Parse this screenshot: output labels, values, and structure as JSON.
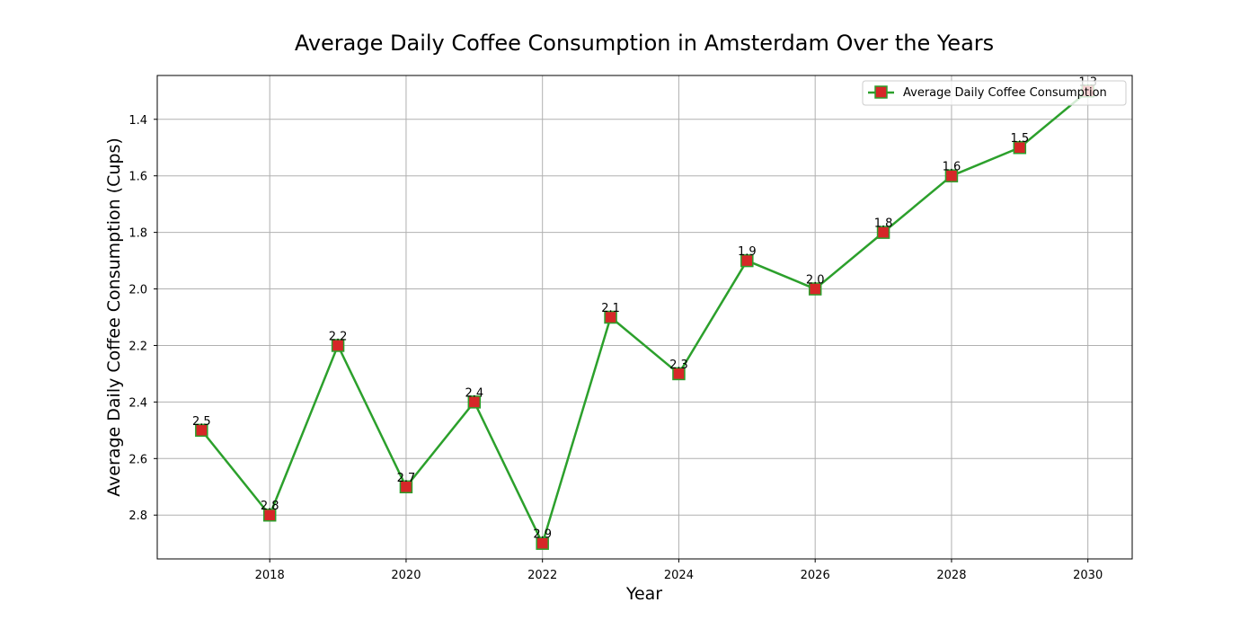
{
  "chart_data": {
    "type": "line",
    "title": "Average Daily Coffee Consumption in Amsterdam Over the Years",
    "xlabel": "Year",
    "ylabel": "Average Daily Coffee Consumption (Cups)",
    "x": [
      2017,
      2018,
      2019,
      2020,
      2021,
      2022,
      2023,
      2024,
      2025,
      2026,
      2027,
      2028,
      2029,
      2030
    ],
    "series": [
      {
        "name": "Average Daily Coffee Consumption",
        "values": [
          2.5,
          2.8,
          2.2,
          2.7,
          2.4,
          2.9,
          2.1,
          2.3,
          1.9,
          2.0,
          1.8,
          1.6,
          1.5,
          1.3
        ],
        "data_labels": [
          "2.5",
          "2.8",
          "2.2",
          "2.7",
          "2.4",
          "2.9",
          "2.1",
          "2.3",
          "1.9",
          "2.0",
          "1.8",
          "1.6",
          "1.5",
          "1.3"
        ],
        "line_color": "#2ca02c",
        "marker": "square",
        "marker_fill": "#d62728",
        "marker_edge": "#2ca02c"
      }
    ],
    "xlim": [
      2016.35,
      2030.65
    ],
    "ylim": [
      2.955,
      1.245
    ],
    "y_inverted": true,
    "xticks": [
      2018,
      2020,
      2022,
      2024,
      2026,
      2028,
      2030
    ],
    "xtick_labels": [
      "2018",
      "2020",
      "2022",
      "2024",
      "2026",
      "2028",
      "2030"
    ],
    "yticks": [
      1.4,
      1.6,
      1.8,
      2.0,
      2.2,
      2.4,
      2.6,
      2.8
    ],
    "ytick_labels": [
      "1.4",
      "1.6",
      "1.8",
      "2.0",
      "2.2",
      "2.4",
      "2.6",
      "2.8"
    ],
    "grid": true,
    "legend_position": "top-right",
    "grid_color": "#b0b0b0",
    "axes_color": "#000000"
  }
}
